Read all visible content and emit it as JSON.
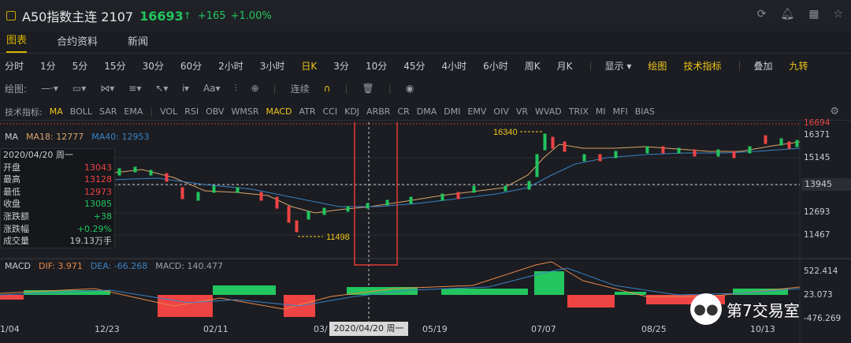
{
  "header": {
    "symbol": "A50指数主连 2107",
    "price": "16693",
    "arrow": "↑",
    "change": "+165",
    "change_pct": "+1.00%"
  },
  "tabs": [
    {
      "label": "图表"
    },
    {
      "label": "合约资料"
    },
    {
      "label": "新闻"
    }
  ],
  "periods": [
    "分时",
    "1分",
    "5分",
    "15分",
    "30分",
    "60分",
    "2小时",
    "3小时",
    "日K",
    "3分",
    "10分",
    "45分",
    "4小时",
    "6小时",
    "周K",
    "月K"
  ],
  "period_tools": [
    "显示 ▾",
    "绘图",
    "技术指标",
    "叠加",
    "九转"
  ],
  "draw_tools": {
    "label": "绘图:",
    "continuous": "连续"
  },
  "indicators": {
    "label": "技术指标:",
    "main": [
      "MA",
      "BOLL",
      "SAR",
      "EMA"
    ],
    "sub": [
      "VOL",
      "RSI",
      "OBV",
      "WMSR",
      "MACD",
      "ATR",
      "CCI",
      "KDJ",
      "ARBR",
      "CR",
      "DMA",
      "DMI",
      "EMV",
      "OIV",
      "VR",
      "WVAD",
      "TRIX",
      "MI",
      "MFI",
      "BIAS"
    ]
  },
  "ma_legend": {
    "name": "MA",
    "ma18": "MA18: 12777",
    "ma40": "MA40: 12953"
  },
  "info_panel": {
    "date": "2020/04/20 周一",
    "rows": [
      {
        "k": "开盘",
        "v": "13043",
        "c": "#ef4444"
      },
      {
        "k": "最高",
        "v": "13128",
        "c": "#ef4444"
      },
      {
        "k": "最低",
        "v": "12973",
        "c": "#ef4444"
      },
      {
        "k": "收盘",
        "v": "13085",
        "c": "#22c55e"
      },
      {
        "k": "涨跌额",
        "v": "+38",
        "c": "#22c55e"
      },
      {
        "k": "涨跌幅",
        "v": "+0.29%",
        "c": "#22c55e"
      },
      {
        "k": "成交量",
        "v": "19.13万手",
        "c": "#c9ccd2"
      }
    ]
  },
  "macd_legend": {
    "name": "MACD",
    "dif": "DIF: 3.971",
    "dea": "DEA: -66.268",
    "macd": "MACD: 140.477"
  },
  "y_axis": [
    "16694",
    "16371",
    "15145",
    "13945",
    "12693",
    "11467"
  ],
  "macd_axis": [
    "522.414",
    "23.073",
    "-476.269"
  ],
  "current_price_tag": "13945",
  "x_axis": [
    "1/04",
    "12/23",
    "02/11",
    "03/",
    "05/19",
    "07/07",
    "08/25",
    "10/13"
  ],
  "crosshair_date": "2020/04/20 周一",
  "annotations": {
    "high": "16340",
    "low": "11498"
  },
  "watermark": "第7交易室",
  "colors": {
    "up": "#22c55e",
    "down": "#ef4444",
    "accent": "#f0c419",
    "ma18": "#d9a36b",
    "ma40": "#3b82c4"
  },
  "icons": [
    "refresh-icon",
    "bell-icon",
    "grid-icon",
    "star-icon"
  ]
}
